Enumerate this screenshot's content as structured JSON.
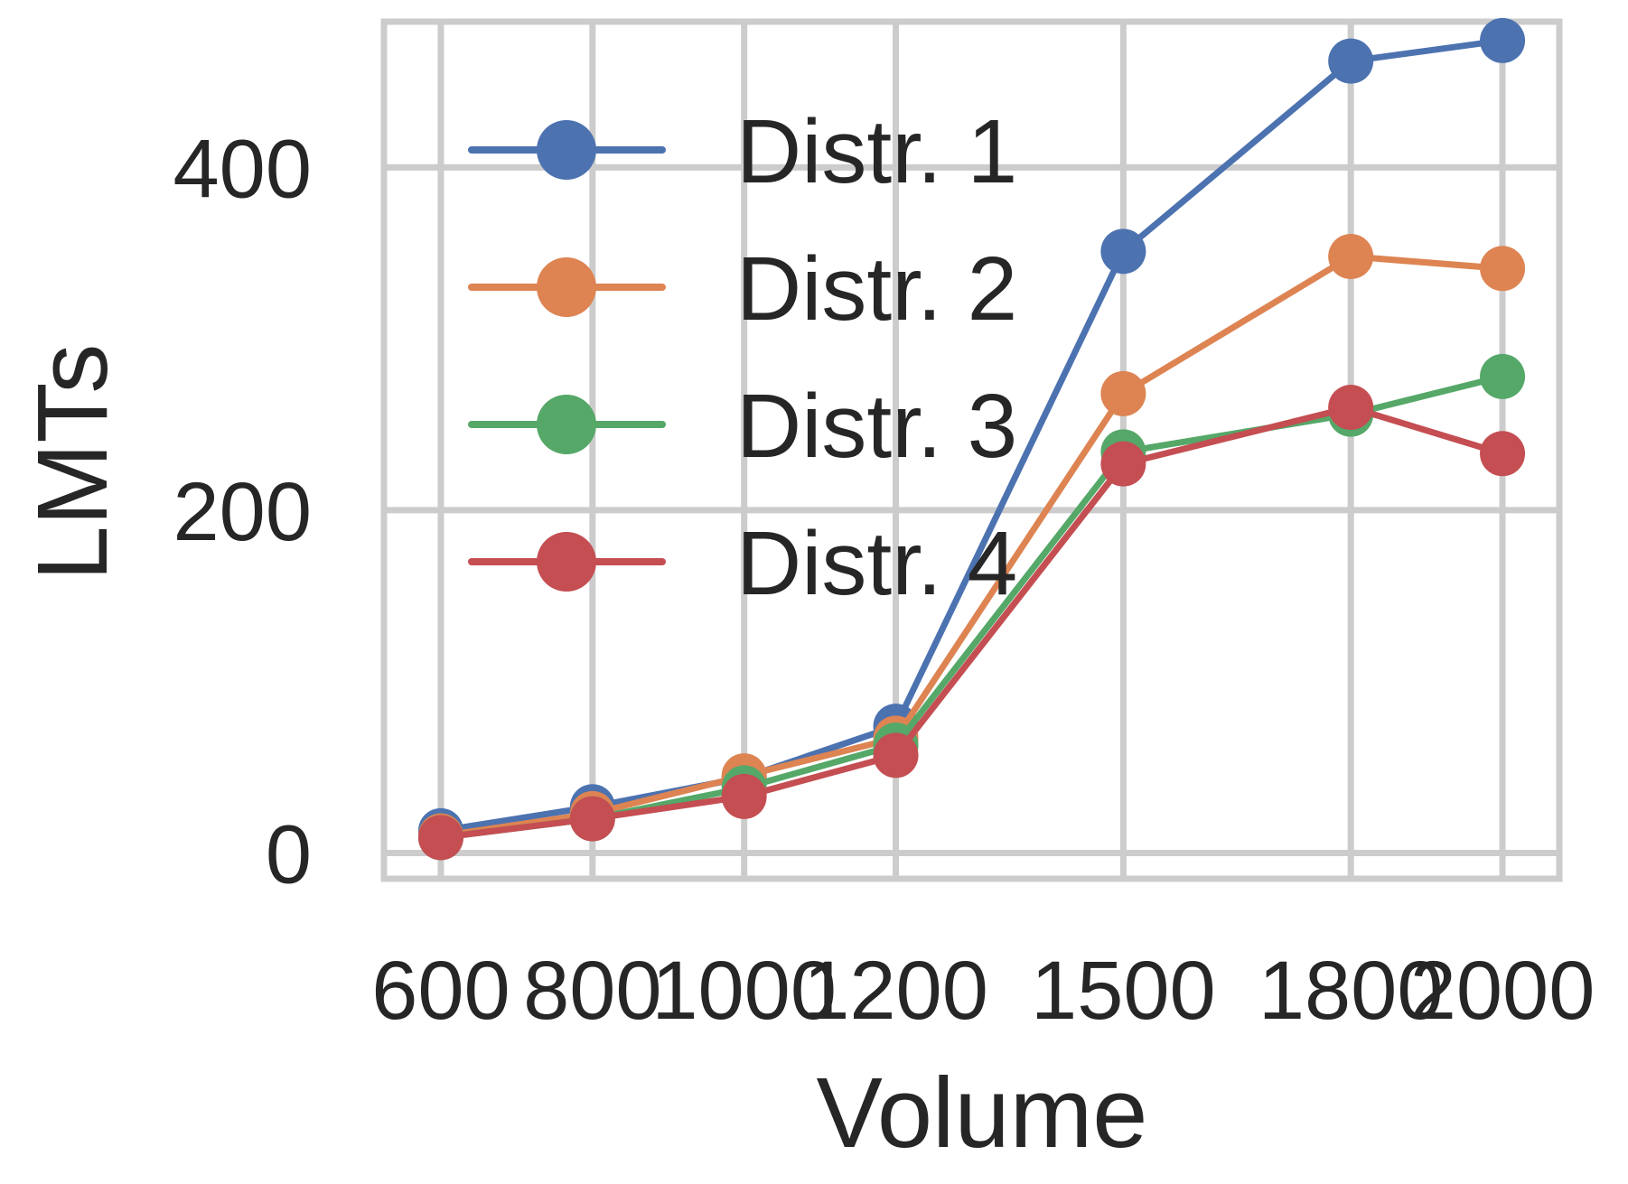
{
  "chart_data": {
    "type": "line",
    "title": "",
    "xlabel": "Volume",
    "ylabel": "LMTs",
    "x": [
      600,
      800,
      1000,
      1200,
      1500,
      1800,
      2000
    ],
    "xtick_labels": [
      "600",
      "800",
      "1000",
      "1200",
      "1500",
      "1800",
      "2000"
    ],
    "ytick_values": [
      0,
      200,
      400
    ],
    "ytick_labels": [
      "0",
      "200",
      "400"
    ],
    "xlim": [
      525,
      2075
    ],
    "ylim": [
      -15,
      485
    ],
    "grid": true,
    "legend_position": "upper-left",
    "series": [
      {
        "name": "Distr. 1",
        "color": "#4c72b0",
        "values": [
          13,
          27,
          44,
          74,
          351,
          462,
          474
        ]
      },
      {
        "name": "Distr. 2",
        "color": "#dd8452",
        "values": [
          10,
          23,
          45,
          67,
          268,
          348,
          341
        ]
      },
      {
        "name": "Distr. 3",
        "color": "#55a868",
        "values": [
          9,
          20,
          38,
          63,
          234,
          256,
          278
        ]
      },
      {
        "name": "Distr. 4",
        "color": "#c44e52",
        "values": [
          9,
          20,
          33,
          57,
          227,
          260,
          233
        ]
      }
    ]
  }
}
